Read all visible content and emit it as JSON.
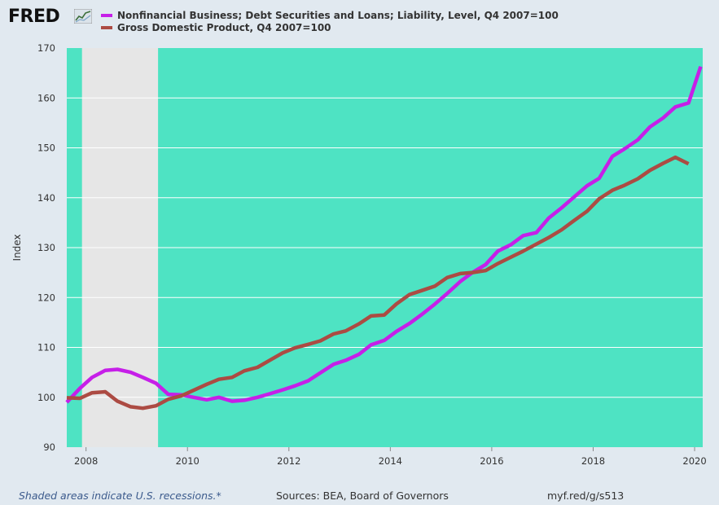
{
  "header": {
    "logo_text": "FRED",
    "logo_icon": "trend-graph-icon"
  },
  "chart_data": {
    "type": "line",
    "ylabel": "Index",
    "xlabel": "",
    "ylim": [
      90,
      170
    ],
    "xlim": [
      2007.62,
      2020.16
    ],
    "yticks": [
      90,
      100,
      110,
      120,
      130,
      140,
      150,
      160,
      170
    ],
    "xticks": [
      "2008",
      "2010",
      "2012",
      "2014",
      "2016",
      "2018",
      "2020"
    ],
    "grid": true,
    "plot_background": "#4ee3c3",
    "recessions": [
      [
        2007.92,
        2009.42
      ]
    ],
    "recession_color": "#e6e6e6",
    "series": [
      {
        "name": "Nonfinancial Business; Debt Securities and Loans; Liability, Level, Q4 2007=100",
        "color": "#c61fe8",
        "values": [
          [
            2007.62,
            99.0
          ],
          [
            2007.88,
            101.8
          ],
          [
            2008.12,
            104.0
          ],
          [
            2008.38,
            105.4
          ],
          [
            2008.62,
            105.6
          ],
          [
            2008.88,
            105.0
          ],
          [
            2009.12,
            104.0
          ],
          [
            2009.38,
            102.8
          ],
          [
            2009.62,
            100.6
          ],
          [
            2009.88,
            100.5
          ],
          [
            2010.12,
            100.0
          ],
          [
            2010.38,
            99.5
          ],
          [
            2010.62,
            100.0
          ],
          [
            2010.88,
            99.2
          ],
          [
            2011.12,
            99.4
          ],
          [
            2011.38,
            100.0
          ],
          [
            2011.62,
            100.7
          ],
          [
            2011.88,
            101.5
          ],
          [
            2012.12,
            102.3
          ],
          [
            2012.38,
            103.3
          ],
          [
            2012.62,
            104.9
          ],
          [
            2012.88,
            106.6
          ],
          [
            2013.12,
            107.4
          ],
          [
            2013.38,
            108.6
          ],
          [
            2013.62,
            110.5
          ],
          [
            2013.88,
            111.4
          ],
          [
            2014.12,
            113.2
          ],
          [
            2014.38,
            114.8
          ],
          [
            2014.62,
            116.6
          ],
          [
            2014.88,
            118.7
          ],
          [
            2015.12,
            120.8
          ],
          [
            2015.38,
            123.2
          ],
          [
            2015.62,
            125.0
          ],
          [
            2015.88,
            126.6
          ],
          [
            2016.12,
            129.3
          ],
          [
            2016.38,
            130.6
          ],
          [
            2016.62,
            132.4
          ],
          [
            2016.88,
            133.0
          ],
          [
            2017.12,
            135.9
          ],
          [
            2017.38,
            138.0
          ],
          [
            2017.62,
            140.1
          ],
          [
            2017.88,
            142.4
          ],
          [
            2018.12,
            143.9
          ],
          [
            2018.38,
            148.3
          ],
          [
            2018.62,
            149.8
          ],
          [
            2018.88,
            151.6
          ],
          [
            2019.12,
            154.2
          ],
          [
            2019.38,
            156.0
          ],
          [
            2019.62,
            158.2
          ],
          [
            2019.88,
            159.0
          ],
          [
            2020.12,
            166.3
          ]
        ]
      },
      {
        "name": "Gross Domestic Product, Q4 2007=100",
        "color": "#ac4b43",
        "values": [
          [
            2007.62,
            99.9
          ],
          [
            2007.88,
            99.8
          ],
          [
            2008.12,
            100.9
          ],
          [
            2008.38,
            101.1
          ],
          [
            2008.62,
            99.2
          ],
          [
            2008.88,
            98.1
          ],
          [
            2009.12,
            97.8
          ],
          [
            2009.38,
            98.3
          ],
          [
            2009.62,
            99.6
          ],
          [
            2009.88,
            100.3
          ],
          [
            2010.12,
            101.4
          ],
          [
            2010.38,
            102.6
          ],
          [
            2010.62,
            103.6
          ],
          [
            2010.88,
            104.0
          ],
          [
            2011.12,
            105.3
          ],
          [
            2011.38,
            106.0
          ],
          [
            2011.62,
            107.4
          ],
          [
            2011.88,
            108.9
          ],
          [
            2012.12,
            109.9
          ],
          [
            2012.38,
            110.6
          ],
          [
            2012.62,
            111.3
          ],
          [
            2012.88,
            112.7
          ],
          [
            2013.12,
            113.3
          ],
          [
            2013.38,
            114.7
          ],
          [
            2013.62,
            116.3
          ],
          [
            2013.88,
            116.5
          ],
          [
            2014.12,
            118.7
          ],
          [
            2014.38,
            120.6
          ],
          [
            2014.62,
            121.4
          ],
          [
            2014.88,
            122.3
          ],
          [
            2015.12,
            124.0
          ],
          [
            2015.38,
            124.8
          ],
          [
            2015.62,
            125.0
          ],
          [
            2015.88,
            125.4
          ],
          [
            2016.12,
            126.8
          ],
          [
            2016.38,
            128.1
          ],
          [
            2016.62,
            129.3
          ],
          [
            2016.88,
            130.7
          ],
          [
            2017.12,
            132.0
          ],
          [
            2017.38,
            133.6
          ],
          [
            2017.62,
            135.4
          ],
          [
            2017.88,
            137.3
          ],
          [
            2018.12,
            139.8
          ],
          [
            2018.38,
            141.5
          ],
          [
            2018.62,
            142.5
          ],
          [
            2018.88,
            143.8
          ],
          [
            2019.12,
            145.5
          ],
          [
            2019.38,
            146.9
          ],
          [
            2019.62,
            148.1
          ],
          [
            2019.88,
            146.8
          ]
        ]
      }
    ]
  },
  "footer": {
    "recession_note": "Shaded areas indicate U.S. recessions.*",
    "sources": "Sources: BEA, Board of Governors",
    "link": "myf.red/g/s513"
  }
}
